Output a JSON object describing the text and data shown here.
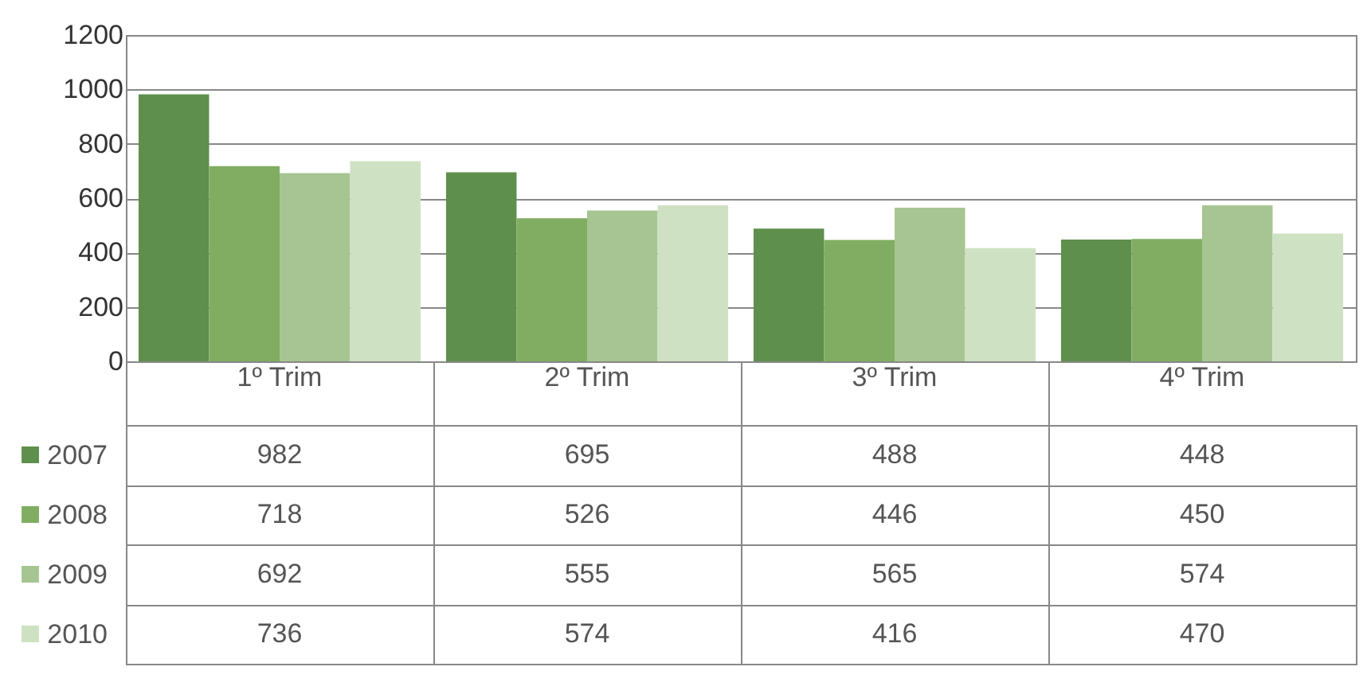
{
  "chart_data": {
    "type": "bar",
    "categories": [
      "1º Trim",
      "2º Trim",
      "3º Trim",
      "4º Trim"
    ],
    "series": [
      {
        "name": "2007",
        "color": "#5e8f4c",
        "values": [
          982,
          695,
          488,
          448
        ]
      },
      {
        "name": "2008",
        "color": "#80ad62",
        "values": [
          718,
          526,
          446,
          450
        ]
      },
      {
        "name": "2009",
        "color": "#a6c593",
        "values": [
          692,
          555,
          565,
          574
        ]
      },
      {
        "name": "2010",
        "color": "#cfe1c3",
        "values": [
          736,
          574,
          416,
          470
        ]
      }
    ],
    "ylim": [
      0,
      1200
    ],
    "yticks": [
      0,
      200,
      400,
      600,
      800,
      1000,
      1200
    ],
    "grid": "y",
    "legend": "bottom left",
    "data_labels": true
  }
}
